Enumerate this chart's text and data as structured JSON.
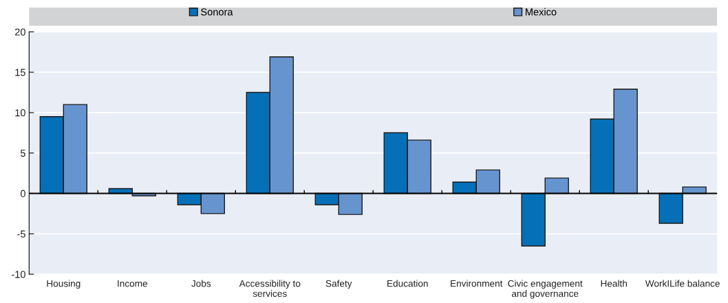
{
  "chart_data": {
    "type": "bar",
    "categories": [
      "Housing",
      "Income",
      "Jobs",
      "Accessibility to\nservices",
      "Safety",
      "Education",
      "Environment",
      "Civic engagement\nand governance",
      "Health",
      "WorkILife balance"
    ],
    "series": [
      {
        "name": "Sonora",
        "color": "#0570b8",
        "values": [
          9.5,
          0.6,
          -1.4,
          12.5,
          -1.4,
          7.5,
          1.4,
          -6.5,
          9.2,
          -3.7
        ]
      },
      {
        "name": "Mexico",
        "color": "#6694cf",
        "values": [
          11.0,
          -0.3,
          -2.5,
          16.9,
          -2.6,
          6.6,
          2.9,
          1.9,
          12.9,
          0.8
        ]
      }
    ],
    "ylim": [
      -10,
      20
    ],
    "yticks": [
      -10,
      -5,
      0,
      5,
      10,
      15,
      20
    ],
    "grid": "y",
    "legend": "top"
  }
}
